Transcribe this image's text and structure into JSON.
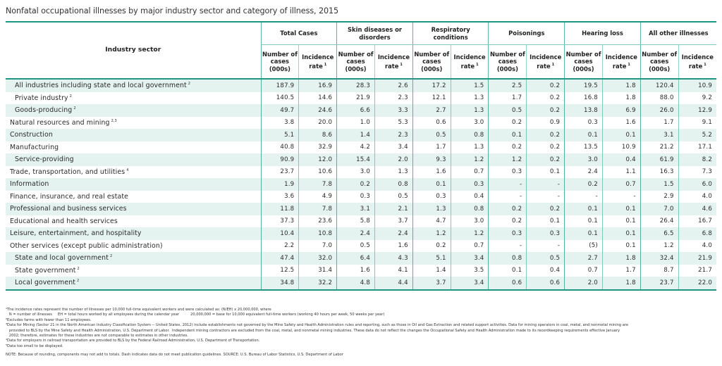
{
  "title": "Nonfatal occupational illnesses by major industry sector and category of illness, 2015",
  "header": {
    "industry_label": "Industry sector",
    "groups": [
      "Total Cases",
      "Skin diseases or disorders",
      "Respiratory conditions",
      "Poisonings",
      "Hearing loss",
      "All other illnesses"
    ],
    "number_label": "Number of cases (000s)",
    "rate_label": "Incidence rate",
    "rate_sup": "1"
  },
  "rows": [
    {
      "name": "All industries including state and local government",
      "sup": "2",
      "indent": true,
      "values": [
        "187.9",
        "16.9",
        "28.3",
        "2.6",
        "17.2",
        "1.5",
        "2.5",
        "0.2",
        "19.5",
        "1.8",
        "120.4",
        "10.9"
      ]
    },
    {
      "name": "Private industry",
      "sup": "2",
      "indent": true,
      "values": [
        "140.5",
        "14.6",
        "21.9",
        "2.3",
        "12.1",
        "1.3",
        "1.7",
        "0.2",
        "16.8",
        "1.8",
        "88.0",
        "9.2"
      ]
    },
    {
      "name": "Goods-producing",
      "sup": "2",
      "indent": true,
      "values": [
        "49.7",
        "24.6",
        "6.6",
        "3.3",
        "2.7",
        "1.3",
        "0.5",
        "0.2",
        "13.8",
        "6.9",
        "26.0",
        "12.9"
      ]
    },
    {
      "name": "Natural resources and mining",
      "sup": "2,3",
      "indent": false,
      "values": [
        "3.8",
        "20.0",
        "1.0",
        "5.3",
        "0.6",
        "3.0",
        "0.2",
        "0.9",
        "0.3",
        "1.6",
        "1.7",
        "9.1"
      ]
    },
    {
      "name": "Construction",
      "sup": "",
      "indent": false,
      "values": [
        "5.1",
        "8.6",
        "1.4",
        "2.3",
        "0.5",
        "0.8",
        "0.1",
        "0.2",
        "0.1",
        "0.1",
        "3.1",
        "5.2"
      ]
    },
    {
      "name": "Manufacturing",
      "sup": "",
      "indent": false,
      "values": [
        "40.8",
        "32.9",
        "4.2",
        "3.4",
        "1.7",
        "1.3",
        "0.2",
        "0.2",
        "13.5",
        "10.9",
        "21.2",
        "17.1"
      ]
    },
    {
      "name": "Service-providing",
      "sup": "",
      "indent": true,
      "values": [
        "90.9",
        "12.0",
        "15.4",
        "2.0",
        "9.3",
        "1.2",
        "1.2",
        "0.2",
        "3.0",
        "0.4",
        "61.9",
        "8.2"
      ]
    },
    {
      "name": "Trade, transportation, and utilities",
      "sup": "4",
      "indent": false,
      "values": [
        "23.7",
        "10.6",
        "3.0",
        "1.3",
        "1.6",
        "0.7",
        "0.3",
        "0.1",
        "2.4",
        "1.1",
        "16.3",
        "7.3"
      ]
    },
    {
      "name": "Information",
      "sup": "",
      "indent": false,
      "values": [
        "1.9",
        "7.8",
        "0.2",
        "0.8",
        "0.1",
        "0.3",
        "-",
        "-",
        "0.2",
        "0.7",
        "1.5",
        "6.0"
      ]
    },
    {
      "name": "Finance, insurance, and real estate",
      "sup": "",
      "indent": false,
      "values": [
        "3.6",
        "4.9",
        "0.3",
        "0.5",
        "0.3",
        "0.4",
        "-",
        "-",
        "-",
        "-",
        "2.9",
        "4.0"
      ]
    },
    {
      "name": "Professional and business services",
      "sup": "",
      "indent": false,
      "values": [
        "11.8",
        "7.8",
        "3.1",
        "2.1",
        "1.3",
        "0.8",
        "0.2",
        "0.2",
        "0.1",
        "0.1",
        "7.0",
        "4.6"
      ]
    },
    {
      "name": "Educational and health services",
      "sup": "",
      "indent": false,
      "values": [
        "37.3",
        "23.6",
        "5.8",
        "3.7",
        "4.7",
        "3.0",
        "0.2",
        "0.1",
        "0.1",
        "0.1",
        "26.4",
        "16.7"
      ]
    },
    {
      "name": "Leisure, entertainment, and hospitality",
      "sup": "",
      "indent": false,
      "values": [
        "10.4",
        "10.8",
        "2.4",
        "2.4",
        "1.2",
        "1.2",
        "0.3",
        "0.3",
        "0.1",
        "0.1",
        "6.5",
        "6.8"
      ]
    },
    {
      "name": "Other services (except public administration)",
      "sup": "",
      "indent": false,
      "values": [
        "2.2",
        "7.0",
        "0.5",
        "1.6",
        "0.2",
        "0.7",
        "-",
        "-",
        "(5)",
        "0.1",
        "1.2",
        "4.0"
      ]
    },
    {
      "name": "State and local government",
      "sup": "2",
      "indent": true,
      "values": [
        "47.4",
        "32.0",
        "6.4",
        "4.3",
        "5.1",
        "3.4",
        "0.8",
        "0.5",
        "2.7",
        "1.8",
        "32.4",
        "21.9"
      ]
    },
    {
      "name": "State government",
      "sup": "2",
      "indent": true,
      "values": [
        "12.5",
        "31.4",
        "1.6",
        "4.1",
        "1.4",
        "3.5",
        "0.1",
        "0.4",
        "0.7",
        "1.7",
        "8.7",
        "21.7"
      ]
    },
    {
      "name": "Local government",
      "sup": "2",
      "indent": true,
      "values": [
        "34.8",
        "32.2",
        "4.8",
        "4.4",
        "3.7",
        "3.4",
        "0.6",
        "0.6",
        "2.0",
        "1.8",
        "23.7",
        "22.0"
      ]
    }
  ],
  "footnotes": [
    "¹The incidence rates represent the number of illnesses per 10,000 full-time equivalent workers and were calculated as: (N/EH) x 20,000,000, where",
    "   N = number of illnesses     EH = total hours worked by all employees during the calendar year          20,000,000 = base for 10,000 equivalent full-time workers (working 40 hours per week, 50 weeks per year)",
    "²Excludes farms with fewer than 11 employees.",
    "³Data for Mining (Sector 21 in the North American Industry Classification System -- United States, 2012) include establishments not governed by the Mine Safety and Health Administration rules and reporting, such as those in Oil and Gas Extraction and related support activities. Data for mining operators in coal, metal, and nonmetal mining are\n   provided to BLS by the Mine Safety and Health Administration, U.S. Department of Labor.  Independent mining contractors are excluded from the coal, metal, and nonmetal mining industries. These data do not reflect the changes the Occupational Safety and Health Administration made to its recordkeeping requirements effective January\n   2002; therefore, estimates for these industries are not comparable to estimates in other industries.",
    "⁴Data for employers in railroad transportation are provided to BLS by the Federal Railroad Administration, U.S. Department of Transportation.",
    "⁵Data too small to be displayed."
  ],
  "note": "NOTE: Because of rounding, components may not add to totals. Dash indicates data do not meet publication guidelines.      SOURCE: U.S. Bureau of Labor Statistics, U.S. Department of Labor",
  "colors": {
    "accent": "#1f9683",
    "stripe": "#e4f2f0",
    "grid": "#7fc8bb"
  }
}
